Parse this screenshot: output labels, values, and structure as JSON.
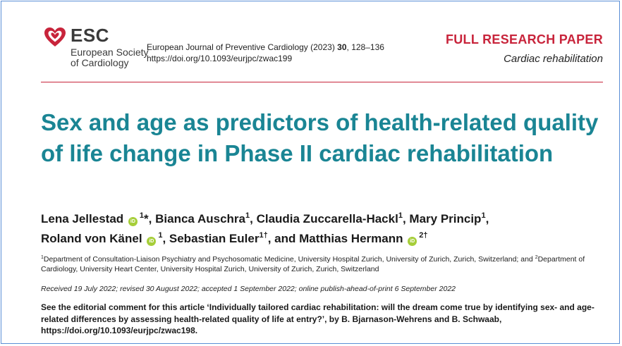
{
  "logo": {
    "abbr": "ESC",
    "line1": "European Society",
    "line2": "of Cardiology"
  },
  "journal": {
    "name_prefix": "European Journal of Preventive Cardiology (2023) ",
    "volume": "30",
    "pages": ", 128–136",
    "doi": "https://doi.org/10.1093/eurjpc/zwac199"
  },
  "header": {
    "paper_type": "FULL RESEARCH PAPER",
    "category": "Cardiac rehabilitation"
  },
  "title": "Sex and age as predictors of health-related quality of life change in Phase II cardiac rehabilitation",
  "authors": [
    {
      "name": "Lena Jellestad",
      "orcid": true,
      "sup": "1",
      "mark": "*",
      "sep": ", "
    },
    {
      "name": "Bianca Auschra",
      "orcid": false,
      "sup": "1",
      "mark": "",
      "sep": ", "
    },
    {
      "name": "Claudia Zuccarella-Hackl",
      "orcid": false,
      "sup": "1",
      "mark": "",
      "sep": ", "
    },
    {
      "name": "Mary Princip",
      "orcid": false,
      "sup": "1",
      "mark": "",
      "sep": ", "
    },
    {
      "name": "Roland von Känel",
      "orcid": true,
      "sup": "1",
      "mark": "",
      "sep": ", "
    },
    {
      "name": "Sebastian Euler",
      "orcid": false,
      "sup": "1†",
      "mark": "",
      "sep": ", and "
    },
    {
      "name": "Matthias Hermann",
      "orcid": true,
      "sup": "2†",
      "mark": "",
      "sep": ""
    }
  ],
  "affiliations": [
    {
      "sup": "1",
      "text": "Department of Consultation-Liaison Psychiatry and Psychosomatic Medicine, University Hospital Zurich, University of Zurich, Zurich, Switzerland; and "
    },
    {
      "sup": "2",
      "text": "Department of Cardiology, University Heart Center, University Hospital Zurich, University of Zurich, Zurich, Switzerland"
    }
  ],
  "dates": "Received 19 July 2022; revised 30 August 2022; accepted 1 September 2022; online publish-ahead-of-print 6 September 2022",
  "editorial": "See the editorial comment for this article ‘Individually tailored cardiac rehabilitation: will the dream come true by identifying sex- and age-related differences by assessing health-related quality of life at entry?’, by B. Bjarnason-Wehrens and B. Schwaab, https://doi.org/10.1093/eurjpc/zwac198.",
  "colors": {
    "title": "#1a8594",
    "accent_red": "#c8243b",
    "orcid_green": "#a6ce39"
  },
  "icons": {
    "logo": "heart-logo-icon",
    "orcid": "orcid-icon"
  }
}
